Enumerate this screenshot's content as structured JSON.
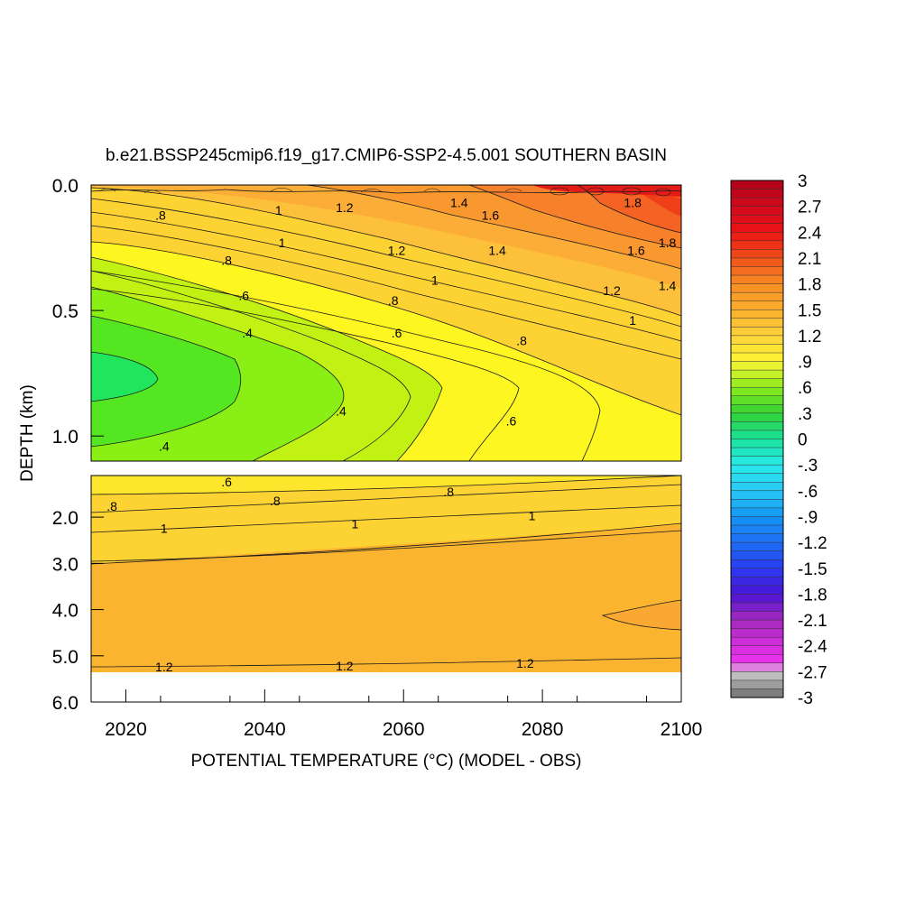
{
  "chart_data": {
    "type": "heatmap",
    "title": "b.e21.BSSP245cmip6.f19_g17.CMIP6-SSP2-4.5.001 SOUTHERN BASIN",
    "xlabel": "POTENTIAL TEMPERATURE (°C) (MODEL - OBS)",
    "ylabel": "DEPTH (km)",
    "xlim": [
      2015,
      2100
    ],
    "x_ticks": [
      {
        "value": 2020,
        "label": "2020"
      },
      {
        "value": 2040,
        "label": "2040"
      },
      {
        "value": 2060,
        "label": "2060"
      },
      {
        "value": 2080,
        "label": "2080"
      },
      {
        "value": 2100,
        "label": "2100"
      }
    ],
    "upper_panel": {
      "ylim": [
        0.0,
        1.1
      ],
      "y_ticks": [
        {
          "value": 0.0,
          "label": "0.0"
        },
        {
          "value": 0.5,
          "label": "0.5"
        },
        {
          "value": 1.0,
          "label": "1.0"
        }
      ]
    },
    "lower_panel": {
      "ylim": [
        1.1,
        6.0
      ],
      "y_ticks": [
        {
          "value": 2.0,
          "label": "2.0"
        },
        {
          "value": 3.0,
          "label": "3.0"
        },
        {
          "value": 4.0,
          "label": "4.0"
        },
        {
          "value": 5.0,
          "label": "5.0"
        },
        {
          "value": 6.0,
          "label": "6.0"
        }
      ]
    },
    "colorbar": {
      "range": [
        -3,
        3
      ],
      "step": 0.1,
      "labels": [
        "3",
        "2.7",
        "2.4",
        "2.1",
        "1.8",
        "1.5",
        "1.2",
        ".9",
        ".6",
        ".3",
        "0",
        "-.3",
        "-.6",
        "-.9",
        "-1.2",
        "-1.5",
        "-1.8",
        "-2.1",
        "-2.4",
        "-2.7",
        "-3"
      ]
    },
    "contour_labels_upper": [
      {
        "text": ".8",
        "x": 2025.0,
        "y": 0.12
      },
      {
        "text": "1",
        "x": 2042.0,
        "y": 0.1
      },
      {
        "text": "1.2",
        "x": 2051.5,
        "y": 0.09
      },
      {
        "text": "1.4",
        "x": 2068.0,
        "y": 0.07
      },
      {
        "text": "1.6",
        "x": 2072.5,
        "y": 0.12
      },
      {
        "text": "1.8",
        "x": 2093.0,
        "y": 0.07
      },
      {
        "text": "1.8",
        "x": 2098.0,
        "y": 0.23
      },
      {
        "text": "1",
        "x": 2042.5,
        "y": 0.23
      },
      {
        "text": "1.2",
        "x": 2059.0,
        "y": 0.26
      },
      {
        "text": "1.4",
        "x": 2073.5,
        "y": 0.26
      },
      {
        "text": "1.6",
        "x": 2093.5,
        "y": 0.26
      },
      {
        "text": ".8",
        "x": 2034.5,
        "y": 0.3
      },
      {
        "text": "1",
        "x": 2064.5,
        "y": 0.38
      },
      {
        "text": "1.2",
        "x": 2090.0,
        "y": 0.42
      },
      {
        "text": "1.4",
        "x": 2098.0,
        "y": 0.4
      },
      {
        "text": ".6",
        "x": 2037.0,
        "y": 0.44
      },
      {
        "text": ".8",
        "x": 2058.5,
        "y": 0.46
      },
      {
        "text": "1",
        "x": 2093.0,
        "y": 0.54
      },
      {
        "text": ".4",
        "x": 2037.5,
        "y": 0.59
      },
      {
        "text": ".6",
        "x": 2059.0,
        "y": 0.59
      },
      {
        "text": ".8",
        "x": 2077.0,
        "y": 0.62
      },
      {
        "text": ".4",
        "x": 2051.0,
        "y": 0.9
      },
      {
        "text": ".6",
        "x": 2075.5,
        "y": 0.94
      },
      {
        "text": ".4",
        "x": 2025.5,
        "y": 1.04
      }
    ],
    "contour_labels_lower": [
      {
        "text": ".6",
        "x": 2034.5,
        "y": 1.24
      },
      {
        "text": ".8",
        "x": 2018.0,
        "y": 1.76
      },
      {
        "text": ".8",
        "x": 2041.5,
        "y": 1.65
      },
      {
        "text": ".8",
        "x": 2066.5,
        "y": 1.45
      },
      {
        "text": "1",
        "x": 2025.5,
        "y": 2.24
      },
      {
        "text": "1",
        "x": 2053.0,
        "y": 2.14
      },
      {
        "text": "1",
        "x": 2078.5,
        "y": 1.97
      },
      {
        "text": "1.2",
        "x": 2025.5,
        "y": 5.24
      },
      {
        "text": "1.2",
        "x": 2051.5,
        "y": 5.22
      },
      {
        "text": "1.2",
        "x": 2077.5,
        "y": 5.16
      }
    ]
  }
}
